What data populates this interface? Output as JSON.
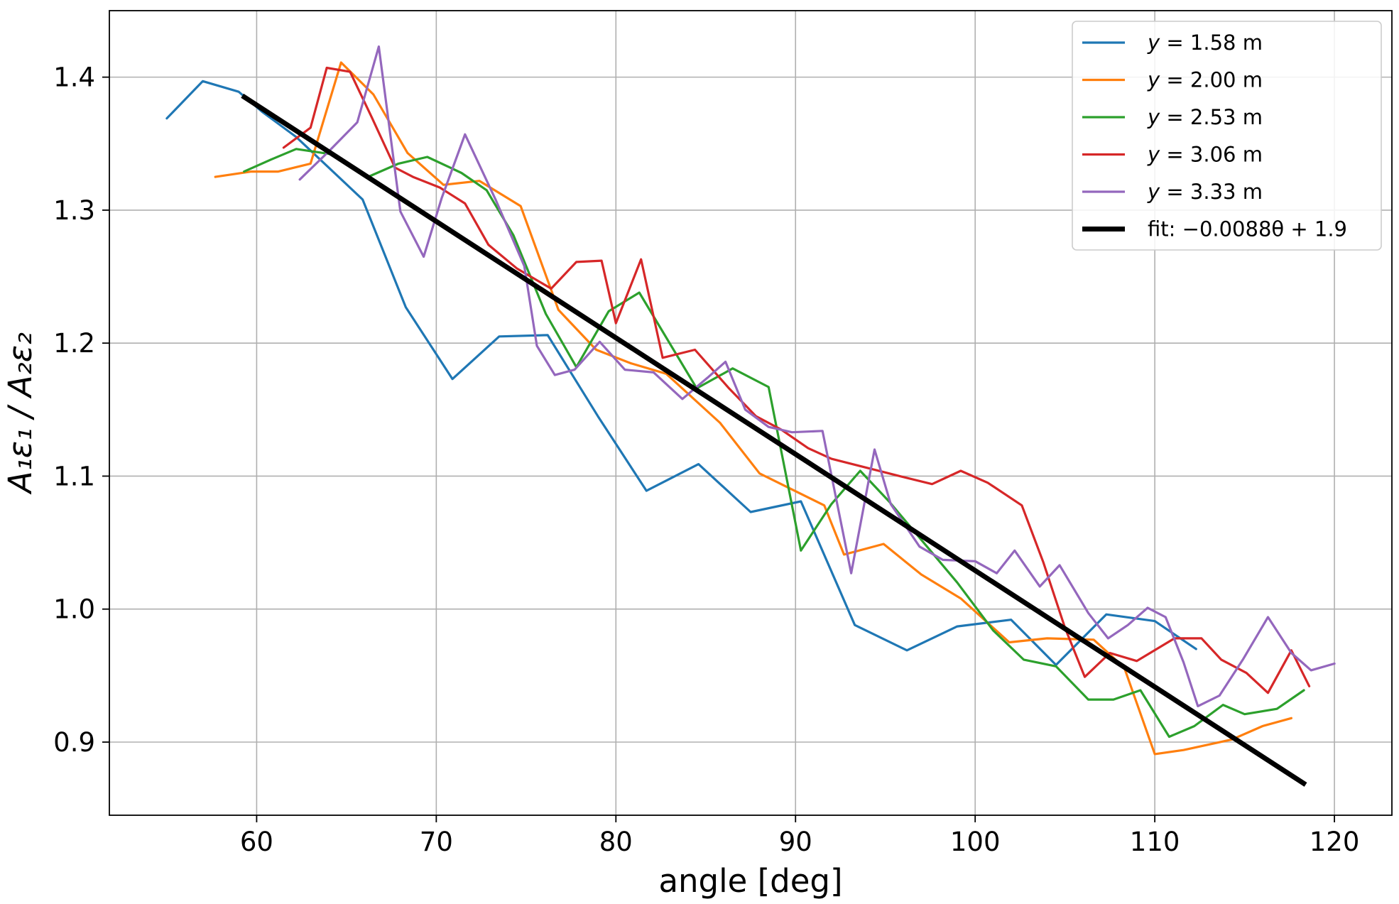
{
  "chart_data": {
    "type": "line",
    "xlabel": "angle [deg]",
    "ylabel": "A₁ε₁ / A₂ε₂",
    "xlim": [
      51.8,
      123.2
    ],
    "ylim": [
      0.845,
      1.45
    ],
    "xticks": [
      60,
      70,
      80,
      90,
      100,
      110,
      120
    ],
    "yticks": [
      0.9,
      1.0,
      1.1,
      1.2,
      1.3,
      1.4
    ],
    "grid": true,
    "legend_position": "top-right",
    "series": [
      {
        "name": "y = 1.58 m",
        "label_parts": [
          "y",
          " = 1.58 m"
        ],
        "color": "#1f77b4",
        "points": [
          [
            55.0,
            1.369
          ],
          [
            57.0,
            1.397
          ],
          [
            59.0,
            1.389
          ],
          [
            60.3,
            1.374
          ],
          [
            62.2,
            1.355
          ],
          [
            65.9,
            1.308
          ],
          [
            68.3,
            1.227
          ],
          [
            70.9,
            1.173
          ],
          [
            73.5,
            1.205
          ],
          [
            76.2,
            1.206
          ],
          [
            79.0,
            1.145
          ],
          [
            81.7,
            1.089
          ],
          [
            84.6,
            1.109
          ],
          [
            87.5,
            1.073
          ],
          [
            90.3,
            1.081
          ],
          [
            93.3,
            0.988
          ],
          [
            96.2,
            0.969
          ],
          [
            99.0,
            0.987
          ],
          [
            102.0,
            0.992
          ],
          [
            104.5,
            0.958
          ],
          [
            107.3,
            0.996
          ],
          [
            110.0,
            0.991
          ],
          [
            112.3,
            0.97
          ]
        ]
      },
      {
        "name": "y = 2.00 m",
        "label_parts": [
          "y",
          " = 2.00 m"
        ],
        "color": "#ff7f0e",
        "points": [
          [
            57.7,
            1.325
          ],
          [
            59.7,
            1.329
          ],
          [
            61.2,
            1.329
          ],
          [
            63.0,
            1.335
          ],
          [
            64.7,
            1.411
          ],
          [
            66.5,
            1.387
          ],
          [
            68.4,
            1.343
          ],
          [
            70.4,
            1.319
          ],
          [
            72.4,
            1.322
          ],
          [
            74.7,
            1.303
          ],
          [
            76.8,
            1.225
          ],
          [
            78.9,
            1.195
          ],
          [
            80.8,
            1.185
          ],
          [
            82.8,
            1.177
          ],
          [
            85.8,
            1.14
          ],
          [
            88.0,
            1.102
          ],
          [
            91.6,
            1.078
          ],
          [
            92.7,
            1.041
          ],
          [
            94.9,
            1.049
          ],
          [
            97.0,
            1.026
          ],
          [
            99.2,
            1.008
          ],
          [
            101.9,
            0.975
          ],
          [
            104.0,
            0.978
          ],
          [
            106.6,
            0.977
          ],
          [
            108.3,
            0.956
          ],
          [
            110.0,
            0.891
          ],
          [
            111.6,
            0.894
          ],
          [
            114.3,
            0.902
          ],
          [
            116.0,
            0.912
          ],
          [
            117.6,
            0.918
          ]
        ]
      },
      {
        "name": "y = 2.53 m",
        "label_parts": [
          "y",
          " = 2.53 m"
        ],
        "color": "#2ca02c",
        "points": [
          [
            59.3,
            1.329
          ],
          [
            60.8,
            1.338
          ],
          [
            62.2,
            1.346
          ],
          [
            64.2,
            1.342
          ],
          [
            66.2,
            1.325
          ],
          [
            67.9,
            1.335
          ],
          [
            69.5,
            1.34
          ],
          [
            71.4,
            1.328
          ],
          [
            72.8,
            1.315
          ],
          [
            74.3,
            1.281
          ],
          [
            76.1,
            1.222
          ],
          [
            77.8,
            1.182
          ],
          [
            79.6,
            1.224
          ],
          [
            81.3,
            1.238
          ],
          [
            84.5,
            1.166
          ],
          [
            86.5,
            1.181
          ],
          [
            88.5,
            1.167
          ],
          [
            90.3,
            1.044
          ],
          [
            92.0,
            1.079
          ],
          [
            93.6,
            1.104
          ],
          [
            95.2,
            1.081
          ],
          [
            99.0,
            1.02
          ],
          [
            101.0,
            0.984
          ],
          [
            102.7,
            0.962
          ],
          [
            104.5,
            0.957
          ],
          [
            106.3,
            0.932
          ],
          [
            107.7,
            0.932
          ],
          [
            109.2,
            0.939
          ],
          [
            110.8,
            0.904
          ],
          [
            112.2,
            0.912
          ],
          [
            113.8,
            0.928
          ],
          [
            115.0,
            0.921
          ],
          [
            116.8,
            0.925
          ],
          [
            118.3,
            0.939
          ]
        ]
      },
      {
        "name": "y = 3.06 m",
        "label_parts": [
          "y",
          " = 3.06 m"
        ],
        "color": "#d62728",
        "points": [
          [
            61.5,
            1.347
          ],
          [
            63.0,
            1.362
          ],
          [
            63.9,
            1.407
          ],
          [
            65.2,
            1.404
          ],
          [
            66.4,
            1.37
          ],
          [
            67.7,
            1.332
          ],
          [
            68.7,
            1.325
          ],
          [
            70.2,
            1.317
          ],
          [
            71.6,
            1.305
          ],
          [
            72.9,
            1.274
          ],
          [
            74.5,
            1.256
          ],
          [
            76.4,
            1.241
          ],
          [
            77.8,
            1.261
          ],
          [
            79.2,
            1.262
          ],
          [
            80.0,
            1.215
          ],
          [
            81.4,
            1.263
          ],
          [
            82.6,
            1.189
          ],
          [
            84.4,
            1.195
          ],
          [
            86.3,
            1.166
          ],
          [
            87.8,
            1.145
          ],
          [
            89.2,
            1.135
          ],
          [
            90.7,
            1.121
          ],
          [
            92.0,
            1.113
          ],
          [
            95.5,
            1.101
          ],
          [
            97.6,
            1.094
          ],
          [
            99.2,
            1.104
          ],
          [
            100.7,
            1.095
          ],
          [
            102.6,
            1.078
          ],
          [
            103.8,
            1.035
          ],
          [
            105.0,
            0.986
          ],
          [
            106.1,
            0.949
          ],
          [
            107.5,
            0.967
          ],
          [
            109.0,
            0.961
          ],
          [
            111.1,
            0.978
          ],
          [
            112.6,
            0.978
          ],
          [
            113.7,
            0.962
          ],
          [
            115.1,
            0.952
          ],
          [
            116.3,
            0.937
          ],
          [
            117.6,
            0.969
          ],
          [
            118.6,
            0.942
          ]
        ]
      },
      {
        "name": "y = 3.33 m",
        "label_parts": [
          "y",
          " = 3.33 m"
        ],
        "color": "#9467bd",
        "points": [
          [
            62.4,
            1.323
          ],
          [
            64.0,
            1.344
          ],
          [
            65.6,
            1.366
          ],
          [
            66.8,
            1.423
          ],
          [
            68.0,
            1.299
          ],
          [
            69.3,
            1.265
          ],
          [
            70.3,
            1.309
          ],
          [
            71.6,
            1.357
          ],
          [
            73.3,
            1.308
          ],
          [
            74.9,
            1.258
          ],
          [
            75.6,
            1.198
          ],
          [
            76.6,
            1.176
          ],
          [
            77.7,
            1.18
          ],
          [
            79.1,
            1.201
          ],
          [
            80.5,
            1.18
          ],
          [
            82.1,
            1.178
          ],
          [
            83.7,
            1.158
          ],
          [
            85.1,
            1.174
          ],
          [
            86.1,
            1.186
          ],
          [
            87.2,
            1.15
          ],
          [
            88.5,
            1.137
          ],
          [
            89.8,
            1.133
          ],
          [
            91.5,
            1.134
          ],
          [
            93.1,
            1.027
          ],
          [
            94.4,
            1.12
          ],
          [
            95.3,
            1.079
          ],
          [
            96.9,
            1.047
          ],
          [
            98.2,
            1.037
          ],
          [
            100.0,
            1.036
          ],
          [
            101.2,
            1.027
          ],
          [
            102.2,
            1.044
          ],
          [
            103.6,
            1.017
          ],
          [
            104.7,
            1.033
          ],
          [
            106.3,
            0.997
          ],
          [
            107.4,
            0.978
          ],
          [
            108.5,
            0.988
          ],
          [
            109.6,
            1.001
          ],
          [
            110.6,
            0.994
          ],
          [
            111.6,
            0.96
          ],
          [
            112.4,
            0.927
          ],
          [
            113.6,
            0.935
          ],
          [
            114.9,
            0.962
          ],
          [
            116.3,
            0.994
          ],
          [
            117.6,
            0.967
          ],
          [
            118.7,
            0.954
          ],
          [
            120.0,
            0.959
          ]
        ]
      }
    ],
    "fit": {
      "label_prefix": "fit: ",
      "label_formula": "−0.0088θ + 1.9",
      "color": "#000000",
      "x_range": [
        59.2,
        118.4
      ],
      "points": [
        [
          59.2,
          1.386
        ],
        [
          118.4,
          0.868
        ]
      ]
    }
  }
}
